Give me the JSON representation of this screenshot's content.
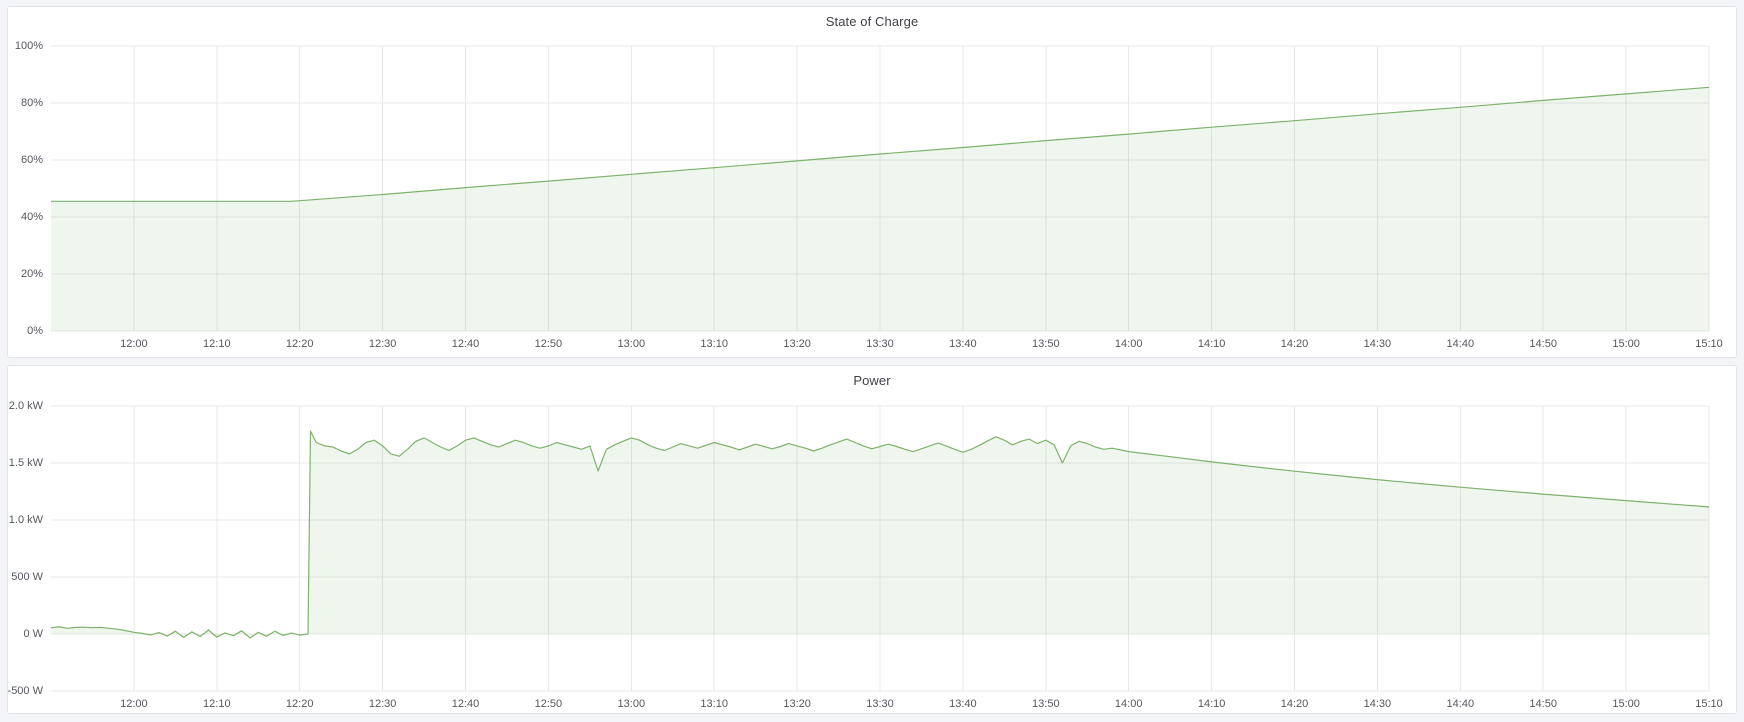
{
  "panels": {
    "soc_title": "State of Charge",
    "power_title": "Power"
  },
  "colors": {
    "series_green_line": "#7eb26d",
    "series_green_fill": "rgba(126,178,109,0.12)",
    "gridline": "#e8e8ea",
    "tick_text": "#55575e",
    "panel_background": "#ffffff",
    "page_background": "#f4f5f9"
  },
  "chart_data": [
    {
      "type": "area",
      "title": "State of Charge",
      "xlabel": "",
      "ylabel": "",
      "unit": "percent",
      "legend": "hidden",
      "grid": "on",
      "ylim": [
        0,
        100
      ],
      "xlim_minutes": [
        0,
        200
      ],
      "x_axis_start_time": "11:50",
      "y_ticks": [
        {
          "v": 0,
          "label": "0%"
        },
        {
          "v": 20,
          "label": "20%"
        },
        {
          "v": 40,
          "label": "40%"
        },
        {
          "v": 60,
          "label": "60%"
        },
        {
          "v": 80,
          "label": "80%"
        },
        {
          "v": 100,
          "label": "100%"
        }
      ],
      "x_ticks": [
        {
          "m": 10,
          "label": "12:00"
        },
        {
          "m": 20,
          "label": "12:10"
        },
        {
          "m": 30,
          "label": "12:20"
        },
        {
          "m": 40,
          "label": "12:30"
        },
        {
          "m": 50,
          "label": "12:40"
        },
        {
          "m": 60,
          "label": "12:50"
        },
        {
          "m": 70,
          "label": "13:00"
        },
        {
          "m": 80,
          "label": "13:10"
        },
        {
          "m": 90,
          "label": "13:20"
        },
        {
          "m": 100,
          "label": "13:30"
        },
        {
          "m": 110,
          "label": "13:40"
        },
        {
          "m": 120,
          "label": "13:50"
        },
        {
          "m": 130,
          "label": "14:00"
        },
        {
          "m": 140,
          "label": "14:10"
        },
        {
          "m": 150,
          "label": "14:20"
        },
        {
          "m": 160,
          "label": "14:30"
        },
        {
          "m": 170,
          "label": "14:40"
        },
        {
          "m": 180,
          "label": "14:50"
        },
        {
          "m": 190,
          "label": "15:00"
        },
        {
          "m": 200,
          "label": "15:10"
        }
      ],
      "series_name": "State of Charge",
      "points": [
        [
          0,
          45.5
        ],
        [
          10,
          45.5
        ],
        [
          20,
          45.5
        ],
        [
          29,
          45.5
        ],
        [
          40,
          47.9
        ],
        [
          50,
          50.3
        ],
        [
          60,
          52.6
        ],
        [
          70,
          55.0
        ],
        [
          80,
          57.3
        ],
        [
          90,
          59.7
        ],
        [
          100,
          62.1
        ],
        [
          110,
          64.4
        ],
        [
          120,
          66.8
        ],
        [
          130,
          69.1
        ],
        [
          140,
          71.5
        ],
        [
          150,
          73.8
        ],
        [
          160,
          76.2
        ],
        [
          170,
          78.5
        ],
        [
          180,
          80.9
        ],
        [
          190,
          83.2
        ],
        [
          200,
          85.5
        ]
      ]
    },
    {
      "type": "area",
      "title": "Power",
      "xlabel": "",
      "ylabel": "",
      "unit": "watt",
      "legend": "hidden",
      "grid": "on",
      "ylim": [
        -500,
        2000
      ],
      "xlim_minutes": [
        0,
        200
      ],
      "x_axis_start_time": "11:50",
      "y_ticks": [
        {
          "v": -500,
          "label": "-500 W"
        },
        {
          "v": 0,
          "label": "0 W"
        },
        {
          "v": 500,
          "label": "500 W"
        },
        {
          "v": 1000,
          "label": "1.0 kW"
        },
        {
          "v": 1500,
          "label": "1.5 kW"
        },
        {
          "v": 2000,
          "label": "2.0 kW"
        }
      ],
      "x_ticks": [
        {
          "m": 10,
          "label": "12:00"
        },
        {
          "m": 20,
          "label": "12:10"
        },
        {
          "m": 30,
          "label": "12:20"
        },
        {
          "m": 40,
          "label": "12:30"
        },
        {
          "m": 50,
          "label": "12:40"
        },
        {
          "m": 60,
          "label": "12:50"
        },
        {
          "m": 70,
          "label": "13:00"
        },
        {
          "m": 80,
          "label": "13:10"
        },
        {
          "m": 90,
          "label": "13:20"
        },
        {
          "m": 100,
          "label": "13:30"
        },
        {
          "m": 110,
          "label": "13:40"
        },
        {
          "m": 120,
          "label": "13:50"
        },
        {
          "m": 130,
          "label": "14:00"
        },
        {
          "m": 140,
          "label": "14:10"
        },
        {
          "m": 150,
          "label": "14:20"
        },
        {
          "m": 160,
          "label": "14:30"
        },
        {
          "m": 170,
          "label": "14:40"
        },
        {
          "m": 180,
          "label": "14:50"
        },
        {
          "m": 190,
          "label": "15:00"
        },
        {
          "m": 200,
          "label": "15:10"
        }
      ],
      "series_name": "Power",
      "points": [
        [
          0,
          55
        ],
        [
          1,
          62
        ],
        [
          2,
          50
        ],
        [
          3,
          58
        ],
        [
          4,
          60
        ],
        [
          5,
          55
        ],
        [
          6,
          58
        ],
        [
          7,
          50
        ],
        [
          8,
          42
        ],
        [
          9,
          30
        ],
        [
          10,
          15
        ],
        [
          11,
          5
        ],
        [
          12,
          -8
        ],
        [
          13,
          12
        ],
        [
          14,
          -18
        ],
        [
          15,
          25
        ],
        [
          16,
          -30
        ],
        [
          17,
          18
        ],
        [
          18,
          -22
        ],
        [
          19,
          35
        ],
        [
          20,
          -28
        ],
        [
          21,
          10
        ],
        [
          22,
          -15
        ],
        [
          23,
          28
        ],
        [
          24,
          -35
        ],
        [
          25,
          15
        ],
        [
          26,
          -20
        ],
        [
          27,
          25
        ],
        [
          28,
          -12
        ],
        [
          29,
          8
        ],
        [
          30,
          -10
        ],
        [
          31,
          0
        ],
        [
          31.3,
          1780
        ],
        [
          32,
          1680
        ],
        [
          33,
          1650
        ],
        [
          34,
          1640
        ],
        [
          35,
          1605
        ],
        [
          36,
          1580
        ],
        [
          37,
          1620
        ],
        [
          38,
          1680
        ],
        [
          39,
          1700
        ],
        [
          40,
          1650
        ],
        [
          41,
          1580
        ],
        [
          42,
          1560
        ],
        [
          43,
          1620
        ],
        [
          44,
          1690
        ],
        [
          45,
          1720
        ],
        [
          46,
          1680
        ],
        [
          47,
          1640
        ],
        [
          48,
          1610
        ],
        [
          49,
          1650
        ],
        [
          50,
          1700
        ],
        [
          51,
          1720
        ],
        [
          52,
          1690
        ],
        [
          53,
          1660
        ],
        [
          54,
          1640
        ],
        [
          55,
          1670
        ],
        [
          56,
          1700
        ],
        [
          57,
          1680
        ],
        [
          58,
          1650
        ],
        [
          59,
          1630
        ],
        [
          60,
          1650
        ],
        [
          61,
          1680
        ],
        [
          62,
          1660
        ],
        [
          63,
          1640
        ],
        [
          64,
          1620
        ],
        [
          65,
          1650
        ],
        [
          66,
          1430
        ],
        [
          67,
          1620
        ],
        [
          68,
          1660
        ],
        [
          69,
          1690
        ],
        [
          70,
          1720
        ],
        [
          71,
          1700
        ],
        [
          72,
          1660
        ],
        [
          73,
          1630
        ],
        [
          74,
          1610
        ],
        [
          75,
          1640
        ],
        [
          76,
          1670
        ],
        [
          77,
          1650
        ],
        [
          78,
          1630
        ],
        [
          79,
          1655
        ],
        [
          80,
          1680
        ],
        [
          81,
          1660
        ],
        [
          82,
          1640
        ],
        [
          83,
          1615
        ],
        [
          84,
          1640
        ],
        [
          85,
          1665
        ],
        [
          86,
          1645
        ],
        [
          87,
          1625
        ],
        [
          88,
          1645
        ],
        [
          89,
          1670
        ],
        [
          90,
          1650
        ],
        [
          91,
          1630
        ],
        [
          92,
          1605
        ],
        [
          93,
          1630
        ],
        [
          94,
          1660
        ],
        [
          95,
          1685
        ],
        [
          96,
          1710
        ],
        [
          97,
          1680
        ],
        [
          98,
          1650
        ],
        [
          99,
          1625
        ],
        [
          100,
          1645
        ],
        [
          101,
          1665
        ],
        [
          102,
          1645
        ],
        [
          103,
          1620
        ],
        [
          104,
          1600
        ],
        [
          105,
          1625
        ],
        [
          106,
          1650
        ],
        [
          107,
          1675
        ],
        [
          108,
          1650
        ],
        [
          109,
          1620
        ],
        [
          110,
          1595
        ],
        [
          111,
          1620
        ],
        [
          112,
          1655
        ],
        [
          113,
          1695
        ],
        [
          114,
          1730
        ],
        [
          115,
          1700
        ],
        [
          116,
          1660
        ],
        [
          117,
          1690
        ],
        [
          118,
          1710
        ],
        [
          119,
          1670
        ],
        [
          120,
          1700
        ],
        [
          121,
          1660
        ],
        [
          122,
          1500
        ],
        [
          123,
          1650
        ],
        [
          124,
          1690
        ],
        [
          125,
          1670
        ],
        [
          126,
          1640
        ],
        [
          127,
          1620
        ],
        [
          128,
          1630
        ],
        [
          129,
          1615
        ],
        [
          130,
          1600
        ],
        [
          135,
          1555
        ],
        [
          140,
          1510
        ],
        [
          145,
          1468
        ],
        [
          150,
          1428
        ],
        [
          155,
          1390
        ],
        [
          160,
          1354
        ],
        [
          165,
          1320
        ],
        [
          170,
          1288
        ],
        [
          175,
          1257
        ],
        [
          180,
          1227
        ],
        [
          185,
          1198
        ],
        [
          190,
          1170
        ],
        [
          195,
          1142
        ],
        [
          200,
          1115
        ]
      ]
    }
  ]
}
